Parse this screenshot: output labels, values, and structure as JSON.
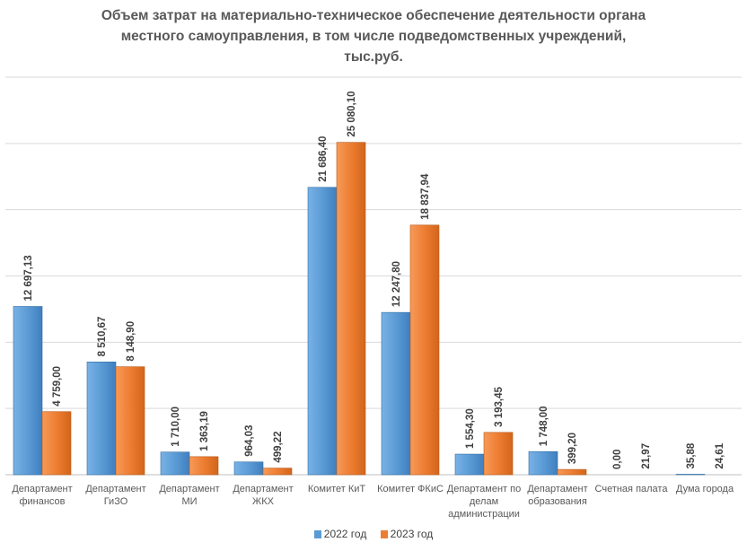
{
  "chart_data": {
    "type": "bar",
    "title": "Объем затрат на материально-техническое обеспечение деятельности органа местного самоуправления, в том числе подведомственных учреждений, тыс.руб.",
    "title_lines": [
      "Объем затрат на материально-техническое обеспечение деятельности органа",
      "местного самоуправления, в том числе подведомственных учреждений,",
      "тыс.руб."
    ],
    "categories": [
      [
        "Департамент",
        "финансов"
      ],
      [
        "Департамент",
        "ГиЗО"
      ],
      [
        "Департамент",
        "МИ"
      ],
      [
        "Департамент",
        "ЖКХ"
      ],
      [
        "Комитет КиТ"
      ],
      [
        "Комитет ФКиС"
      ],
      [
        "Департамент по",
        "делам",
        "администрации"
      ],
      [
        "Департамент",
        "образования"
      ],
      [
        "Счетная палата"
      ],
      [
        "Дума города"
      ]
    ],
    "series": [
      {
        "name": "2022 год",
        "color": "#5B9BD5",
        "values": [
          12697.13,
          8510.67,
          1710.0,
          964.03,
          21686.4,
          12247.8,
          1554.3,
          1748.0,
          0.0,
          35.88
        ],
        "labels": [
          "12 697,13",
          "8 510,67",
          "1 710,00",
          "964,03",
          "21 686,40",
          "12 247,80",
          "1 554,30",
          "1 748,00",
          "0,00",
          "35,88"
        ]
      },
      {
        "name": "2023 год",
        "color": "#ED7D31",
        "values": [
          4759.0,
          8148.9,
          1363.19,
          499.22,
          25080.1,
          18837.94,
          3193.45,
          399.2,
          21.97,
          24.61
        ],
        "labels": [
          "4 759,00",
          "8 148,90",
          "1 363,19",
          "499,22",
          "25 080,10",
          "18 837,94",
          "3 193,45",
          "399,20",
          "21,97",
          "24,61"
        ]
      }
    ],
    "ylim": [
      0,
      30000
    ],
    "grid": true,
    "legend": "bottom"
  }
}
